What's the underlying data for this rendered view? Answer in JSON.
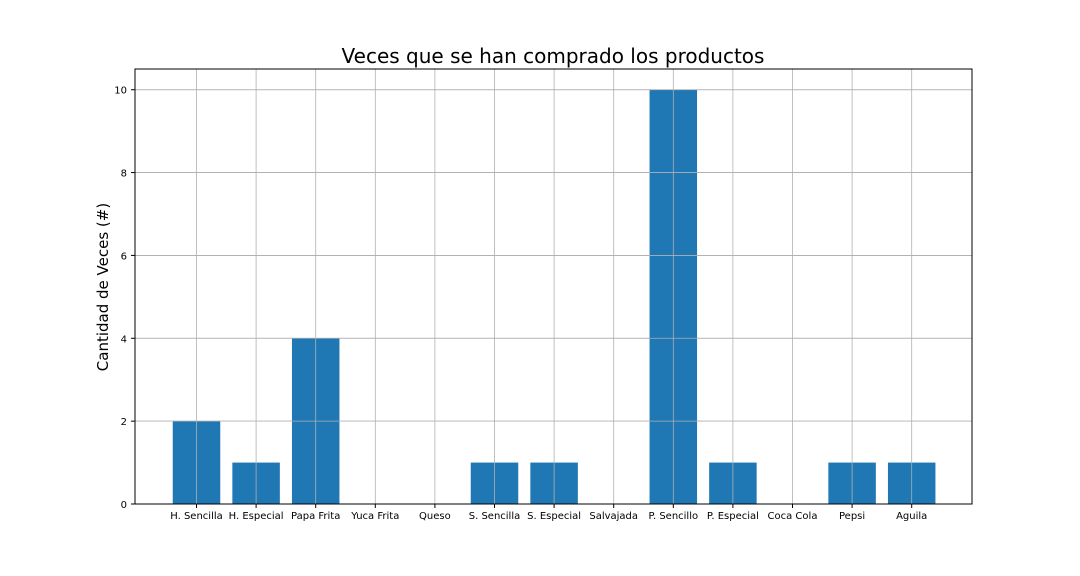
{
  "chart_data": {
    "type": "bar",
    "title": "Veces que se han comprado los productos",
    "xlabel": "",
    "ylabel": "Cantidad de Veces (#)",
    "categories": [
      "H. Sencilla",
      "H. Especial",
      "Papa Frita",
      "Yuca Frita",
      "Queso",
      "S. Sencilla",
      "S. Especial",
      "Salvajada",
      "P. Sencillo",
      "P. Especial",
      "Coca Cola",
      "Pepsi",
      "Aguila"
    ],
    "values": [
      2,
      1,
      4,
      0,
      0,
      1,
      1,
      0,
      10,
      1,
      0,
      1,
      1
    ],
    "ylim": [
      0,
      10.5
    ],
    "yticks": [
      0,
      2,
      4,
      6,
      8,
      10
    ],
    "grid": true,
    "bar_color": "#1f77b4",
    "grid_color": "#b0b0b0"
  }
}
